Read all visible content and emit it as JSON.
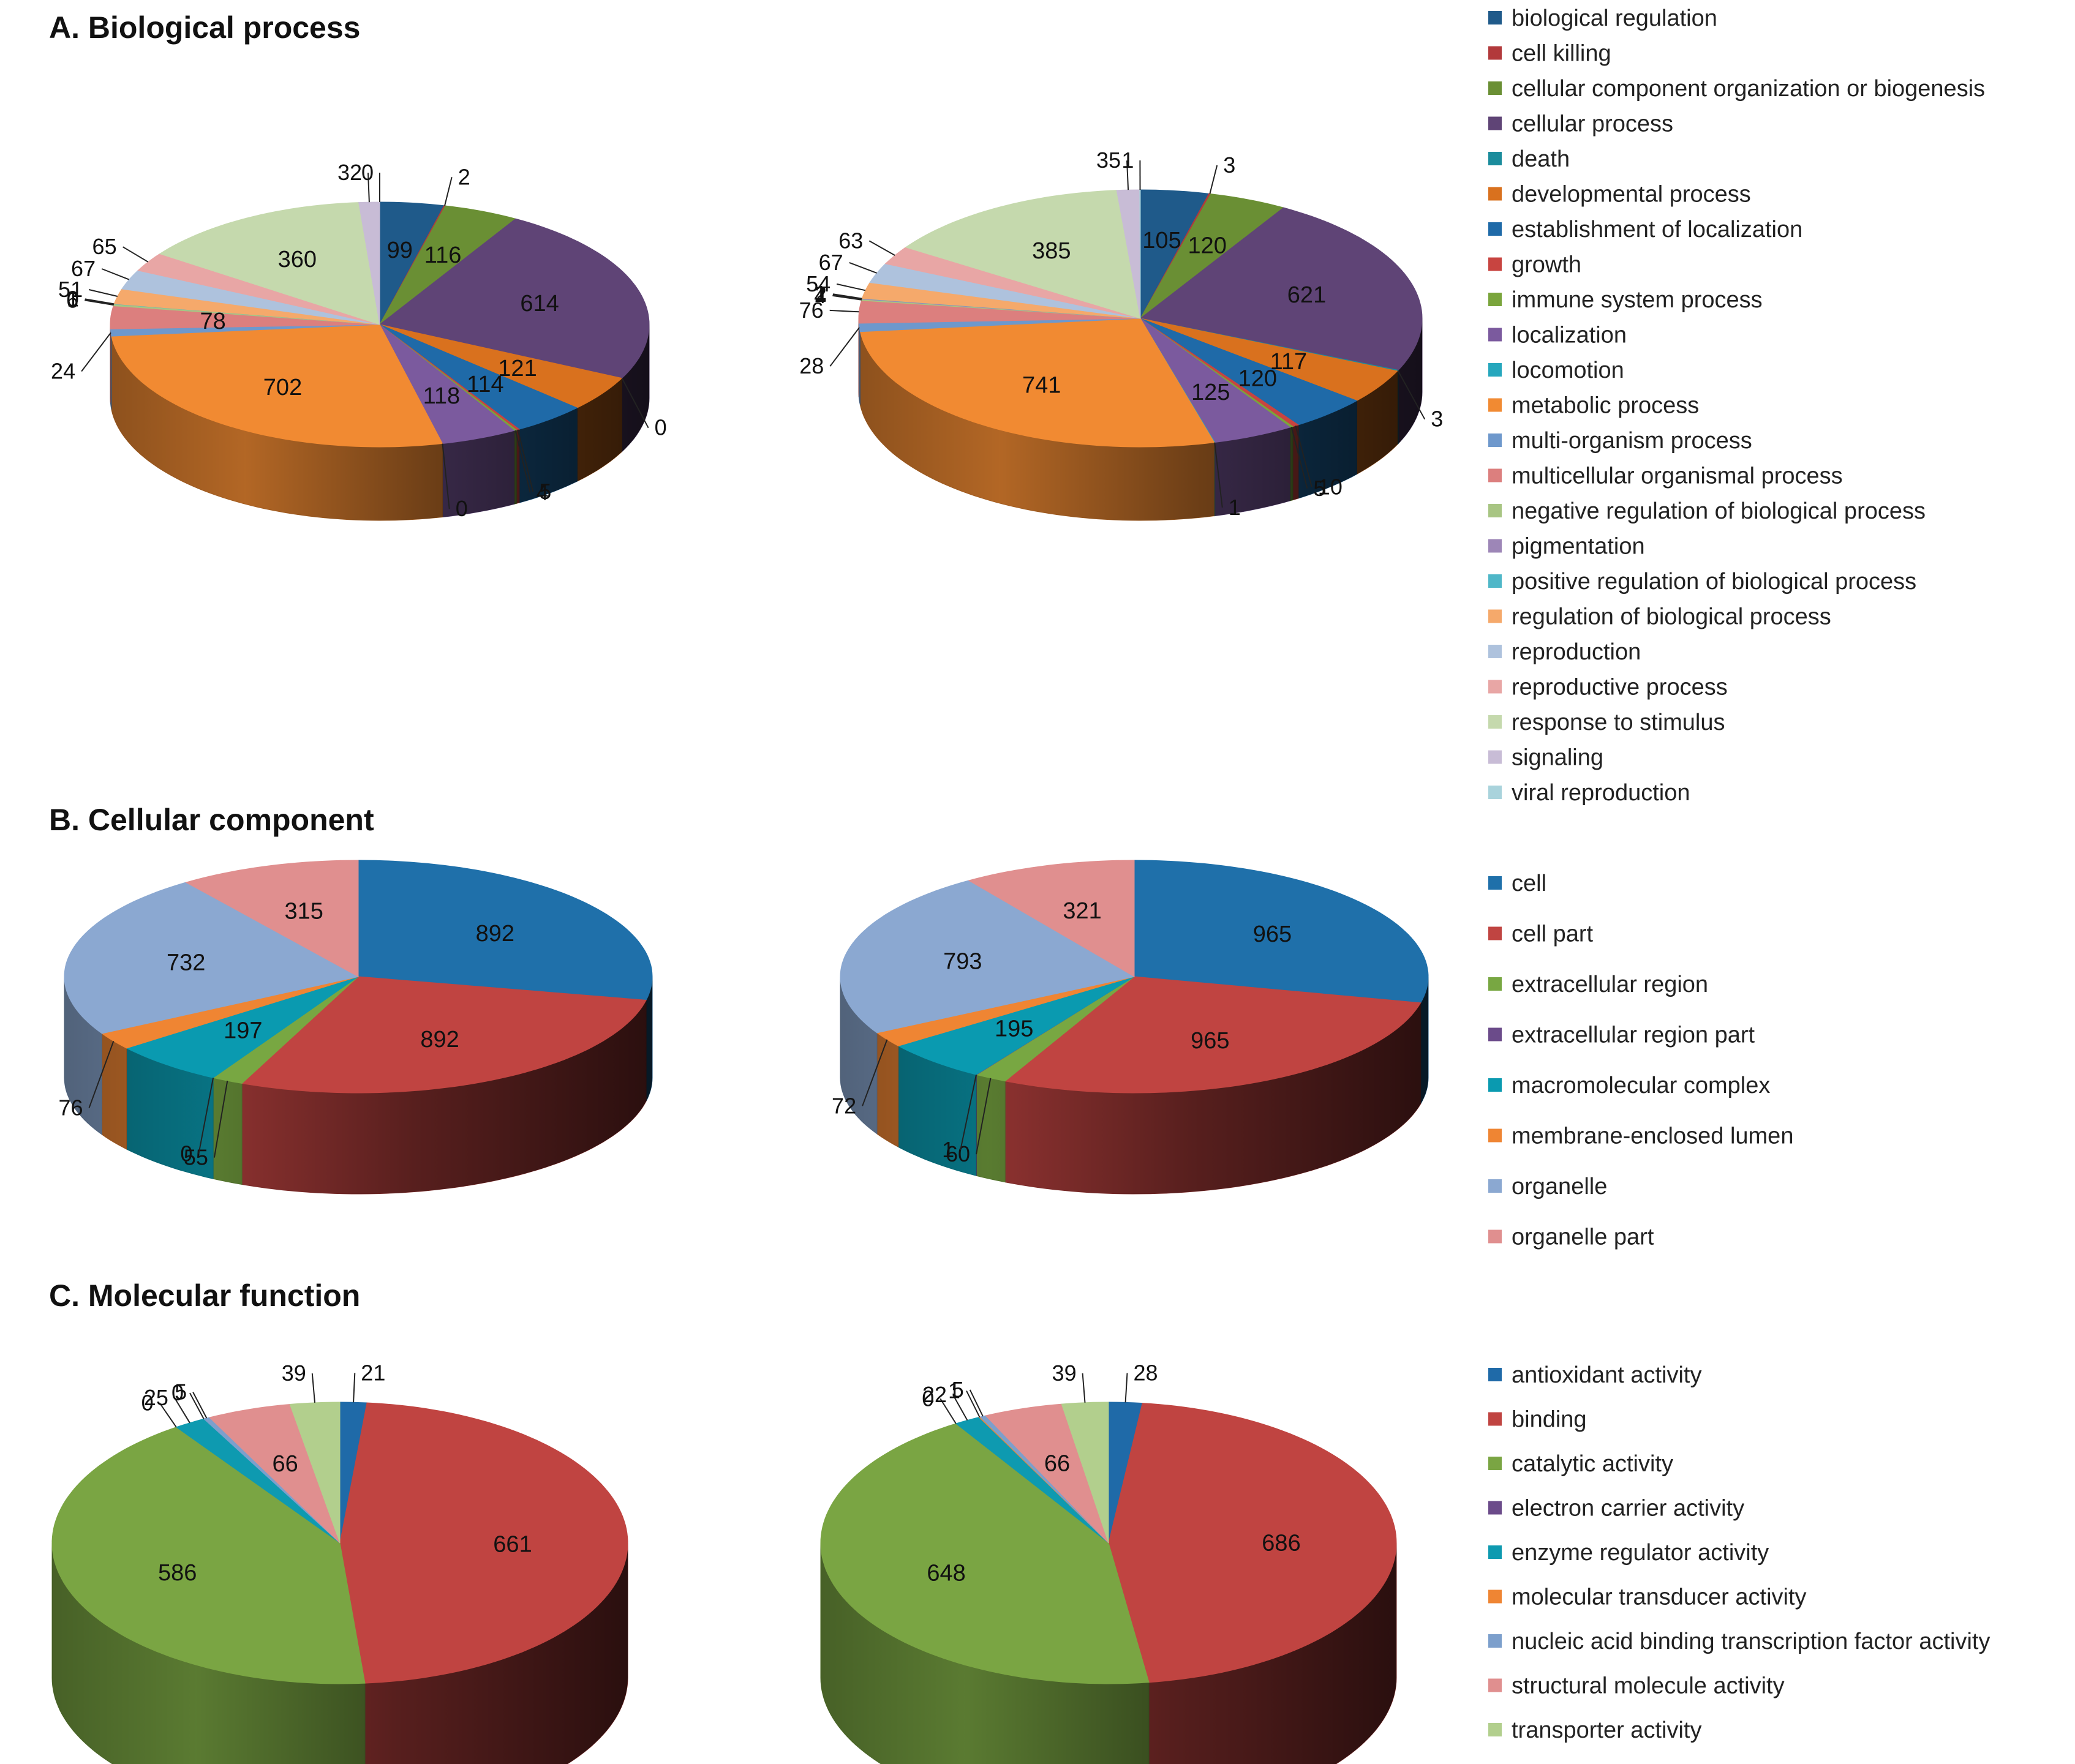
{
  "figure": {
    "panels": [
      "A. Biological process",
      "B. Cellular component",
      "C. Molecular function"
    ]
  },
  "chart_data": [
    {
      "id": "bp",
      "type": "pie",
      "title": "A. Biological process",
      "categories": [
        "biological regulation",
        "cell killing",
        "cellular component organization or biogenesis",
        "cellular process",
        "death",
        "developmental process",
        "establishment of localization",
        "growth",
        "immune system process",
        "localization",
        "locomotion",
        "metabolic process",
        "multi-organism process",
        "multicellular organismal process",
        "negative regulation of biological process",
        "pigmentation",
        "positive regulation of biological process",
        "regulation of biological process",
        "reproduction",
        "reproductive process",
        "response to stimulus",
        "signaling",
        "viral reproduction"
      ],
      "colors": [
        "#1f5a8a",
        "#b2393b",
        "#6a8f34",
        "#5f4476",
        "#1b8c9c",
        "#d9711e",
        "#1f6aa8",
        "#c84440",
        "#7aa53c",
        "#7b5a9e",
        "#26a7bd",
        "#f18a32",
        "#6e98cc",
        "#dc7f7e",
        "#a8c583",
        "#9d86b7",
        "#4fb7c8",
        "#f5a96b",
        "#aec2dd",
        "#e8a6a5",
        "#c5d9ad",
        "#c8bcd6",
        "#a9d3dc"
      ],
      "series": [
        {
          "name": "left",
          "values": [
            99,
            2,
            116,
            614,
            0,
            121,
            114,
            5,
            4,
            118,
            0,
            702,
            24,
            78,
            6,
            0,
            1,
            51,
            67,
            65,
            360,
            32,
            0
          ]
        },
        {
          "name": "right",
          "values": [
            105,
            3,
            120,
            621,
            3,
            117,
            120,
            10,
            5,
            125,
            1,
            741,
            28,
            76,
            4,
            2,
            1,
            54,
            67,
            63,
            385,
            35,
            1
          ]
        }
      ]
    },
    {
      "id": "cc",
      "type": "pie",
      "title": "B. Cellular component",
      "categories": [
        "cell",
        "cell part",
        "extracellular region",
        "extracellular region part",
        "macromolecular complex",
        "membrane-enclosed lumen",
        "organelle",
        "organelle part"
      ],
      "colors": [
        "#1f70aa",
        "#c04441",
        "#78a742",
        "#6b4b8a",
        "#0a9ab0",
        "#ef8533",
        "#8ba8d1",
        "#e08f8f"
      ],
      "series": [
        {
          "name": "left",
          "values": [
            892,
            892,
            55,
            0,
            197,
            76,
            732,
            315
          ]
        },
        {
          "name": "right",
          "values": [
            965,
            965,
            60,
            1,
            195,
            72,
            793,
            321
          ]
        }
      ]
    },
    {
      "id": "mf",
      "type": "pie",
      "title": "C. Molecular function",
      "categories": [
        "antioxidant activity",
        "binding",
        "catalytic activity",
        "electron carrier activity",
        "enzyme regulator activity",
        "molecular transducer activity",
        "nucleic acid binding transcription factor activity",
        "structural molecule activity",
        "transporter activity"
      ],
      "colors": [
        "#1f6aa8",
        "#c04441",
        "#7aa543",
        "#6b4b8a",
        "#0e9ab0",
        "#ef8533",
        "#7c9fcc",
        "#e08f8f",
        "#b2cf8d"
      ],
      "series": [
        {
          "name": "left",
          "values": [
            21,
            661,
            586,
            0,
            25,
            0,
            5,
            66,
            39
          ]
        },
        {
          "name": "right",
          "values": [
            28,
            686,
            648,
            0,
            22,
            1,
            5,
            66,
            39
          ]
        }
      ]
    }
  ]
}
